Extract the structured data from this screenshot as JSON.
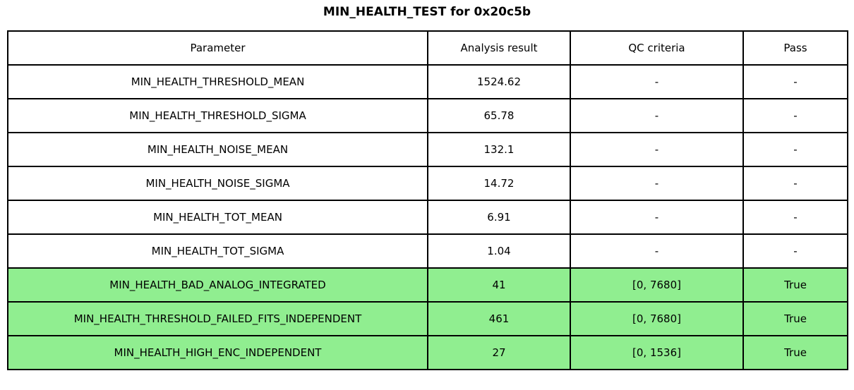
{
  "title": "MIN_HEALTH_TEST for 0x20c5b",
  "colors": {
    "pass_green": "#90EE90",
    "border": "#000000",
    "background": "#ffffff"
  },
  "chart_data": {
    "type": "table",
    "title": "MIN_HEALTH_TEST for 0x20c5b",
    "columns": [
      "Parameter",
      "Analysis result",
      "QC criteria",
      "Pass"
    ],
    "rows": [
      {
        "parameter": "MIN_HEALTH_THRESHOLD_MEAN",
        "result": "1524.62",
        "qc": "-",
        "pass": "-",
        "highlight": false
      },
      {
        "parameter": "MIN_HEALTH_THRESHOLD_SIGMA",
        "result": "65.78",
        "qc": "-",
        "pass": "-",
        "highlight": false
      },
      {
        "parameter": "MIN_HEALTH_NOISE_MEAN",
        "result": "132.1",
        "qc": "-",
        "pass": "-",
        "highlight": false
      },
      {
        "parameter": "MIN_HEALTH_NOISE_SIGMA",
        "result": "14.72",
        "qc": "-",
        "pass": "-",
        "highlight": false
      },
      {
        "parameter": "MIN_HEALTH_TOT_MEAN",
        "result": "6.91",
        "qc": "-",
        "pass": "-",
        "highlight": false
      },
      {
        "parameter": "MIN_HEALTH_TOT_SIGMA",
        "result": "1.04",
        "qc": "-",
        "pass": "-",
        "highlight": false
      },
      {
        "parameter": "MIN_HEALTH_BAD_ANALOG_INTEGRATED",
        "result": "41",
        "qc": "[0, 7680]",
        "pass": "True",
        "highlight": true
      },
      {
        "parameter": "MIN_HEALTH_THRESHOLD_FAILED_FITS_INDEPENDENT",
        "result": "461",
        "qc": "[0, 7680]",
        "pass": "True",
        "highlight": true
      },
      {
        "parameter": "MIN_HEALTH_HIGH_ENC_INDEPENDENT",
        "result": "27",
        "qc": "[0, 1536]",
        "pass": "True",
        "highlight": true
      }
    ]
  }
}
